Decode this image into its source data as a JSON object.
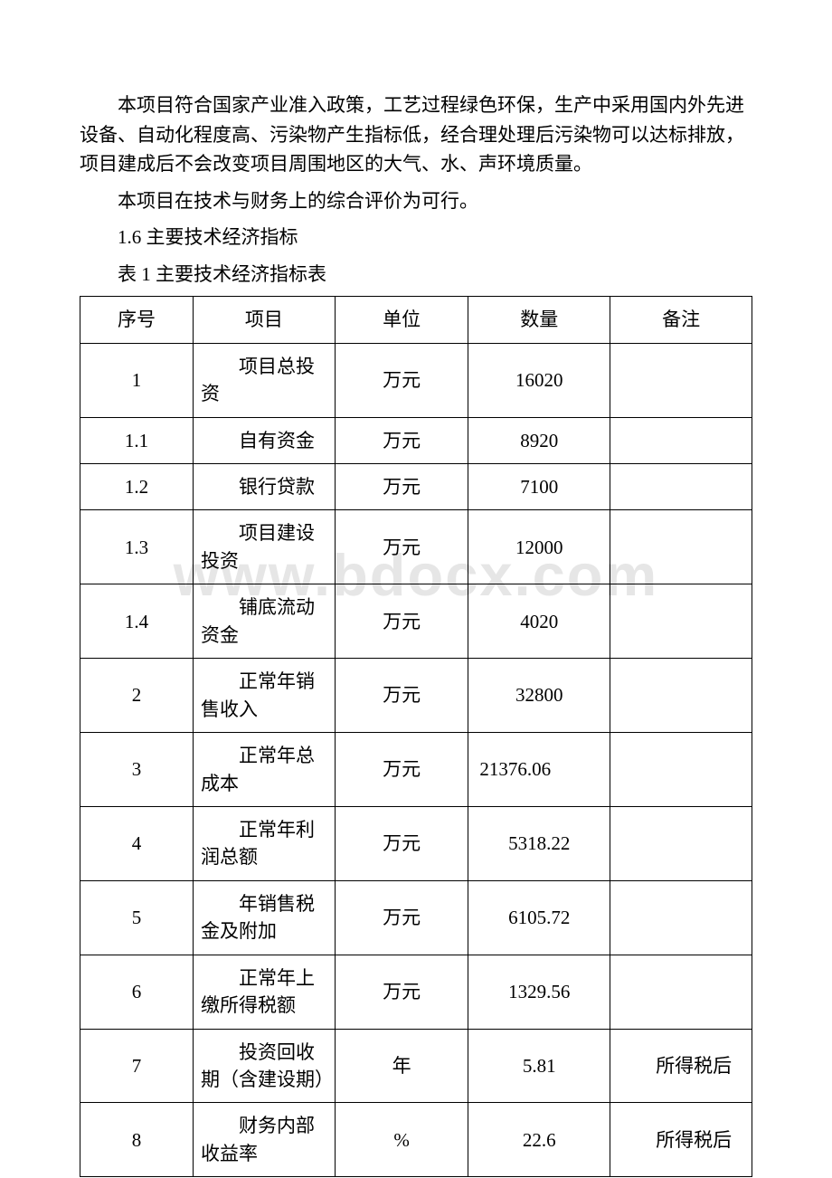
{
  "watermark": "www.bdocx.com",
  "paragraphs": {
    "p1": "本项目符合国家产业准入政策，工艺过程绿色环保，生产中采用国内外先进设备、自动化程度高、污染物产生指标低，经合理处理后污染物可以达标排放，项目建成后不会改变项目周围地区的大气、水、声环境质量。",
    "p2": "本项目在技术与财务上的综合评价为可行。",
    "h1": "1.6 主要技术经济指标",
    "caption": "表 1 主要技术经济指标表"
  },
  "table": {
    "headers": {
      "seq": "序号",
      "item": "项目",
      "unit": "单位",
      "qty": "数量",
      "note": "备注"
    },
    "rows": [
      {
        "seq": "1",
        "item": "项目总投资",
        "unit": "万元",
        "qty": "16020",
        "qty_align": "center",
        "note": ""
      },
      {
        "seq": "1.1",
        "item": "自有资金",
        "unit": "万元",
        "qty": "8920",
        "qty_align": "center",
        "note": ""
      },
      {
        "seq": "1.2",
        "item": "银行贷款",
        "unit": "万元",
        "qty": "7100",
        "qty_align": "center",
        "note": ""
      },
      {
        "seq": "1.3",
        "item": "项目建设投资",
        "unit": "万元",
        "qty": "12000",
        "qty_align": "center",
        "note": ""
      },
      {
        "seq": "1.4",
        "item": "铺底流动资金",
        "unit": "万元",
        "qty": "4020",
        "qty_align": "center",
        "note": ""
      },
      {
        "seq": "2",
        "item": "正常年销售收入",
        "unit": "万元",
        "qty": "32800",
        "qty_align": "center",
        "note": ""
      },
      {
        "seq": "3",
        "item": "正常年总成本",
        "unit": "万元",
        "qty": "21376.06",
        "qty_align": "left",
        "note": ""
      },
      {
        "seq": "4",
        "item": "正常年利润总额",
        "unit": "万元",
        "qty": "5318.22",
        "qty_align": "center",
        "note": ""
      },
      {
        "seq": "5",
        "item": "年销售税金及附加",
        "unit": "万元",
        "qty": "6105.72",
        "qty_align": "center",
        "note": ""
      },
      {
        "seq": "6",
        "item": "正常年上缴所得税额",
        "unit": "万元",
        "qty": "1329.56",
        "qty_align": "center",
        "note": ""
      },
      {
        "seq": "7",
        "item": "投资回收期（含建设期）",
        "unit": "年",
        "qty": "5.81",
        "qty_align": "center",
        "note": "所得税后"
      },
      {
        "seq": "8",
        "item": "财务内部收益率",
        "unit": "%",
        "qty": "22.6",
        "qty_align": "center",
        "note": "所得税后"
      }
    ]
  }
}
